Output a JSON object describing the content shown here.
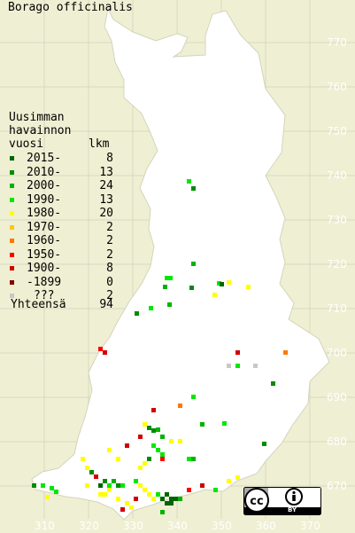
{
  "title": "Borago officinalis",
  "legend": {
    "heading": [
      "Uusimman",
      "havainnon",
      "vuosi"
    ],
    "count_header": "lkm",
    "rows": [
      {
        "label": "2015-",
        "count": "8",
        "color": "#006400"
      },
      {
        "label": "2010-",
        "count": "13",
        "color": "#008c00"
      },
      {
        "label": "2000-",
        "count": "24",
        "color": "#00b400"
      },
      {
        "label": "1990-",
        "count": "13",
        "color": "#00e800"
      },
      {
        "label": "1980-",
        "count": "20",
        "color": "#ffff00"
      },
      {
        "label": "1970-",
        "count": "2",
        "color": "#ffc800"
      },
      {
        "label": "1960-",
        "count": "2",
        "color": "#ff7800"
      },
      {
        "label": "1950-",
        "count": "2",
        "color": "#ff0000"
      },
      {
        "label": "1900-",
        "count": "8",
        "color": "#d20000"
      },
      {
        "label": "-1899",
        "count": "0",
        "color": "#820000"
      },
      {
        "label": "???",
        "count": "2",
        "color": "#c8c8c8"
      }
    ],
    "total_label": "Yhteensä",
    "total_count": "94"
  },
  "y_axis_labels": [
    "770",
    "760",
    "750",
    "740",
    "730",
    "720",
    "710",
    "700",
    "690",
    "680",
    "670"
  ],
  "x_axis_labels": [
    "310",
    "320",
    "330",
    "340",
    "350",
    "360",
    "370"
  ],
  "license_badge": "BY"
}
